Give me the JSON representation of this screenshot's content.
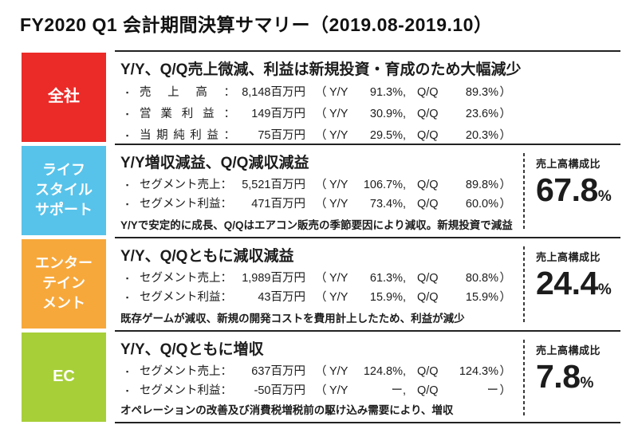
{
  "title": "FY2020 Q1 会計期間決算サマリー（2019.08-2019.10）",
  "tokens": {
    "paren_open": "（",
    "paren_close": "）",
    "comma": ",",
    "yy_label": "Y/Y",
    "qq_label": "Q/Q",
    "share_caption": "売上高構成比"
  },
  "sections": [
    {
      "label": "全社",
      "color": "#EB2B28",
      "heading": "Y/Y、Q/Q売上微減、利益は新規投資・育成のため大幅減少",
      "items": [
        {
          "label": "売上高：",
          "value": "8,148百万円",
          "yy": "91.3%",
          "qq": "89.3%"
        },
        {
          "label": "営業利益：",
          "value": "149百万円",
          "yy": "30.9%",
          "qq": "23.6%"
        },
        {
          "label": "当期純利益：",
          "value": "75百万円",
          "yy": "29.5%",
          "qq": "20.3%"
        }
      ]
    },
    {
      "label": "ライフ\nスタイル\nサポート",
      "color": "#57C3EA",
      "heading": "Y/Y増収減益、Q/Q減収減益",
      "items": [
        {
          "label": "セグメント売上：",
          "value": "5,521百万円",
          "yy": "106.7%",
          "qq": "89.8%"
        },
        {
          "label": "セグメント利益：",
          "value": "471百万円",
          "yy": "73.4%",
          "qq": "60.0%"
        }
      ],
      "note": "Y/Yで安定的に成長、Q/Qはエアコン販売の季節要因により減収。新規投資で減益",
      "share": {
        "value": "67.8",
        "unit": "%"
      }
    },
    {
      "label": "エンター\nテイン\nメント",
      "color": "#F7A83B",
      "heading": "Y/Y、Q/Qともに減収減益",
      "items": [
        {
          "label": "セグメント売上：",
          "value": "1,989百万円",
          "yy": "61.3%",
          "qq": "80.8%"
        },
        {
          "label": "セグメント利益：",
          "value": "43百万円",
          "yy": "15.9%",
          "qq": "15.9%"
        }
      ],
      "note": "既存ゲームが減収、新規の開発コストを費用計上したため、利益が減少",
      "share": {
        "value": "24.4",
        "unit": "%"
      }
    },
    {
      "label": "EC",
      "color": "#A7CF38",
      "heading": "Y/Y、Q/Qともに増収",
      "items": [
        {
          "label": "セグメント売上：",
          "value": "637百万円",
          "yy": "124.8%",
          "qq": "124.3%"
        },
        {
          "label": "セグメント利益：",
          "value": "-50百万円",
          "yy": "ー",
          "qq": "ー"
        }
      ],
      "note": "オペレーションの改善及び消費税増税前の駆け込み需要により、増収",
      "share": {
        "value": "7.8",
        "unit": "%"
      }
    }
  ]
}
